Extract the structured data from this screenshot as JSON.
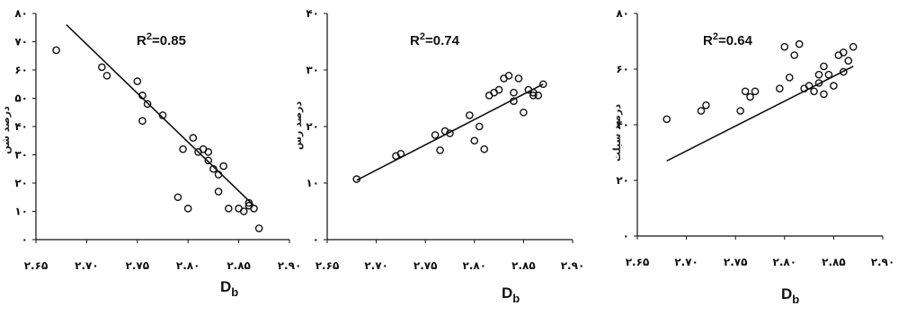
{
  "chart_data": [
    {
      "type": "scatter",
      "title": "",
      "xlabel": "Db",
      "ylabel": "درصد شن",
      "annotation": "R2=0.85",
      "xlim": [
        2.65,
        2.9
      ],
      "ylim": [
        0,
        80
      ],
      "x_ticks": [
        "۲.۶۵",
        "۲.۷۰",
        "۲.۷۵",
        "۲.۸۰",
        "۲.۸۵",
        "۲.۹۰"
      ],
      "y_ticks": [
        "۰",
        "۱۰",
        "۲۰",
        "۳۰",
        "۴۰",
        "۵۰",
        "۶۰",
        "۷۰",
        "۸۰"
      ],
      "trendline": {
        "x": [
          2.68,
          2.865
        ],
        "y": [
          76,
          12
        ]
      },
      "series": [
        {
          "x": [
            2.67,
            2.715,
            2.72,
            2.75,
            2.755,
            2.76,
            2.755,
            2.775,
            2.79,
            2.795,
            2.8,
            2.805,
            2.81,
            2.815,
            2.82,
            2.82,
            2.825,
            2.83,
            2.83,
            2.835,
            2.84,
            2.85,
            2.855,
            2.86,
            2.865,
            2.86,
            2.87
          ],
          "y": [
            67,
            61,
            58,
            56,
            51,
            48,
            42,
            44,
            15,
            32,
            11,
            36,
            31,
            32,
            31,
            28,
            25,
            23,
            17,
            26,
            11,
            11,
            10,
            13,
            11,
            12,
            4
          ]
        }
      ]
    },
    {
      "type": "scatter",
      "title": "",
      "xlabel": "Db",
      "ylabel": "درصد رس",
      "annotation": "R2=0.74",
      "xlim": [
        2.65,
        2.9
      ],
      "ylim": [
        0,
        40
      ],
      "x_ticks": [
        "۲.۶۵",
        "۲.۷۰",
        "۲.۷۵",
        "۲.۸۰",
        "۲.۸۵",
        "۲.۹۰"
      ],
      "y_ticks": [
        "۰",
        "۱۰",
        "۲۰",
        "۳۰",
        "۴۰"
      ],
      "trendline": {
        "x": [
          2.68,
          2.87
        ],
        "y": [
          10.5,
          27.5
        ]
      },
      "series": [
        {
          "x": [
            2.68,
            2.72,
            2.725,
            2.76,
            2.765,
            2.77,
            2.775,
            2.795,
            2.8,
            2.805,
            2.81,
            2.815,
            2.82,
            2.825,
            2.83,
            2.835,
            2.84,
            2.84,
            2.845,
            2.85,
            2.855,
            2.86,
            2.86,
            2.865,
            2.87
          ],
          "y": [
            10.7,
            14.8,
            15.2,
            18.5,
            15.8,
            19.2,
            18.8,
            22,
            17.5,
            20,
            16,
            25.5,
            26,
            26.5,
            28.5,
            29,
            26,
            24.5,
            28.5,
            22.5,
            26.5,
            25.5,
            26,
            25.5,
            27.5
          ]
        }
      ]
    },
    {
      "type": "scatter",
      "title": "",
      "xlabel": "Db",
      "ylabel": "درصد سیلت",
      "annotation": "R2=0.64",
      "xlim": [
        2.65,
        2.9
      ],
      "ylim": [
        0,
        80
      ],
      "x_ticks": [
        "۲.۶۵",
        "۲.۷۰",
        "۲.۷۵",
        "۲.۸۰",
        "۲.۸۵",
        "۲.۹۰"
      ],
      "y_ticks": [
        "۰",
        "۲۰",
        "۴۰",
        "۶۰",
        "۸۰"
      ],
      "trendline": {
        "x": [
          2.68,
          2.87
        ],
        "y": [
          27,
          61
        ]
      },
      "series": [
        {
          "x": [
            2.68,
            2.715,
            2.72,
            2.755,
            2.76,
            2.765,
            2.77,
            2.795,
            2.8,
            2.81,
            2.805,
            2.815,
            2.82,
            2.825,
            2.83,
            2.835,
            2.835,
            2.84,
            2.84,
            2.845,
            2.85,
            2.855,
            2.86,
            2.86,
            2.865,
            2.87
          ],
          "y": [
            42,
            45,
            47,
            45,
            52,
            50,
            52,
            53,
            68,
            65,
            57,
            69,
            53,
            54,
            52,
            55,
            58,
            51,
            61,
            58,
            54,
            65,
            59,
            66,
            63,
            68
          ]
        }
      ]
    }
  ]
}
